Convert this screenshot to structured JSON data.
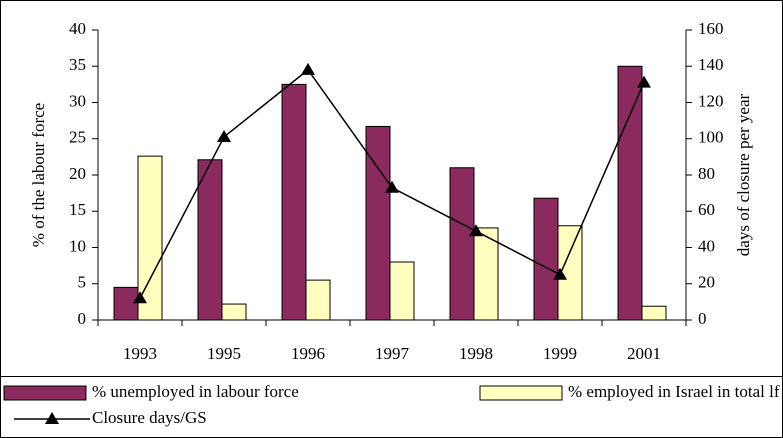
{
  "chart_data": {
    "type": "bar",
    "categories": [
      "1993",
      "1995",
      "1996",
      "1997",
      "1998",
      "1999",
      "2001"
    ],
    "y_label": "% of the labour force",
    "y2_label": "days of closure per year",
    "ylim": [
      0,
      40
    ],
    "yticks": [
      0,
      5,
      10,
      15,
      20,
      25,
      30,
      35,
      40
    ],
    "y2lim": [
      0,
      160
    ],
    "y2ticks": [
      0,
      20,
      40,
      60,
      80,
      100,
      120,
      140,
      160
    ],
    "series": [
      {
        "name": "% unemployed in labour force",
        "type": "bar",
        "color": "#8b2a5f",
        "values": [
          4.5,
          22.1,
          32.5,
          26.7,
          21.0,
          16.8,
          35.0
        ]
      },
      {
        "name": "% employed in Israel in total lf",
        "type": "bar",
        "color": "#ffffc0",
        "values": [
          22.6,
          2.2,
          5.5,
          8.0,
          12.7,
          13.0,
          1.9
        ]
      },
      {
        "name": "Closure days/GS",
        "type": "line",
        "axis": "y2",
        "color": "#000000",
        "values": [
          12,
          101,
          138,
          73,
          49,
          25,
          131
        ]
      }
    ]
  }
}
